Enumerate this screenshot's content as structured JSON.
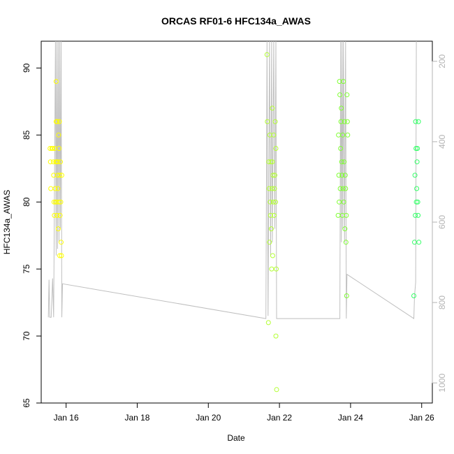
{
  "chart_data": {
    "type": "scatter",
    "title": "ORCAS RF01-6 HFC134a_AWAS",
    "xlabel": "Date",
    "ylabel": "HFC134a_AWAS",
    "ylim": [
      65,
      92
    ],
    "xlim": [
      15.3,
      26.3
    ],
    "y2lim": [
      1050,
      150
    ],
    "x_ticks": [
      {
        "value": 16,
        "label": "Jan 16"
      },
      {
        "value": 18,
        "label": "Jan 18"
      },
      {
        "value": 20,
        "label": "Jan 20"
      },
      {
        "value": 22,
        "label": "Jan 22"
      },
      {
        "value": 24,
        "label": "Jan 24"
      },
      {
        "value": 26,
        "label": "Jan 26"
      }
    ],
    "y_ticks": [
      65,
      70,
      75,
      80,
      85,
      90
    ],
    "y2_ticks": [
      200,
      400,
      600,
      800,
      1000
    ],
    "box": true,
    "grid": false,
    "colors": {
      "flight1": "#ffff00",
      "flight2": "#ccff33",
      "flight3": "#99ff33",
      "flight4": "#66ff33",
      "flight5": "#33ff66",
      "pressure_line": "#bfbfbf"
    },
    "series": [
      {
        "color": "#ffff00",
        "points": [
          [
            15.55,
            84
          ],
          [
            15.56,
            83
          ],
          [
            15.57,
            81
          ],
          [
            15.6,
            84
          ],
          [
            15.62,
            84
          ],
          [
            15.64,
            83
          ],
          [
            15.65,
            82
          ],
          [
            15.66,
            80
          ],
          [
            15.67,
            79
          ],
          [
            15.68,
            84
          ],
          [
            15.69,
            81
          ],
          [
            15.7,
            80
          ],
          [
            15.71,
            83
          ],
          [
            15.72,
            86
          ],
          [
            15.72,
            89
          ],
          [
            15.73,
            83
          ],
          [
            15.74,
            80
          ],
          [
            15.75,
            86
          ],
          [
            15.75,
            79
          ],
          [
            15.76,
            82
          ],
          [
            15.77,
            81
          ],
          [
            15.77,
            83
          ],
          [
            15.78,
            78
          ],
          [
            15.79,
            85
          ],
          [
            15.8,
            80
          ],
          [
            15.8,
            84
          ],
          [
            15.81,
            86
          ],
          [
            15.82,
            82
          ],
          [
            15.82,
            76
          ],
          [
            15.83,
            79
          ],
          [
            15.84,
            83
          ],
          [
            15.85,
            80
          ],
          [
            15.86,
            77
          ],
          [
            15.87,
            76
          ],
          [
            15.88,
            82
          ]
        ]
      },
      {
        "color": "#b3ff33",
        "points": [
          [
            21.65,
            91
          ],
          [
            21.66,
            86
          ],
          [
            21.69,
            71
          ],
          [
            21.7,
            83
          ],
          [
            21.71,
            81
          ],
          [
            21.72,
            77
          ],
          [
            21.73,
            85
          ],
          [
            21.74,
            80
          ],
          [
            21.75,
            79
          ],
          [
            21.76,
            83
          ],
          [
            21.77,
            78
          ],
          [
            21.78,
            75
          ],
          [
            21.79,
            81
          ],
          [
            21.8,
            87
          ],
          [
            21.8,
            83
          ],
          [
            21.81,
            76
          ],
          [
            21.82,
            82
          ],
          [
            21.83,
            80
          ],
          [
            21.84,
            85
          ],
          [
            21.85,
            79
          ],
          [
            21.86,
            81
          ],
          [
            21.87,
            82
          ],
          [
            21.88,
            86
          ],
          [
            21.89,
            80
          ],
          [
            21.9,
            84
          ],
          [
            21.9,
            70
          ],
          [
            21.91,
            75
          ],
          [
            21.92,
            66
          ]
        ]
      },
      {
        "color": "#80ff33",
        "points": [
          [
            23.65,
            79
          ],
          [
            23.66,
            85
          ],
          [
            23.67,
            82
          ],
          [
            23.68,
            80
          ],
          [
            23.69,
            89
          ],
          [
            23.7,
            88
          ],
          [
            23.71,
            81
          ],
          [
            23.72,
            84
          ],
          [
            23.73,
            86
          ],
          [
            23.74,
            87
          ],
          [
            23.75,
            83
          ],
          [
            23.76,
            82
          ],
          [
            23.77,
            79
          ],
          [
            23.78,
            85
          ],
          [
            23.79,
            81
          ],
          [
            23.8,
            89
          ],
          [
            23.81,
            80
          ],
          [
            23.82,
            83
          ],
          [
            23.83,
            86
          ],
          [
            23.84,
            78
          ],
          [
            23.85,
            82
          ],
          [
            23.86,
            81
          ],
          [
            23.87,
            77
          ],
          [
            23.88,
            79
          ],
          [
            23.89,
            73
          ],
          [
            23.9,
            88
          ],
          [
            23.91,
            86
          ],
          [
            23.92,
            85
          ]
        ]
      },
      {
        "color": "#33ff66",
        "points": [
          [
            25.78,
            73
          ],
          [
            25.8,
            77
          ],
          [
            25.81,
            82
          ],
          [
            25.82,
            79
          ],
          [
            25.83,
            86
          ],
          [
            25.84,
            84
          ],
          [
            25.85,
            80
          ],
          [
            25.86,
            81
          ],
          [
            25.87,
            83
          ],
          [
            25.88,
            84
          ],
          [
            25.89,
            80
          ],
          [
            25.9,
            79
          ],
          [
            25.91,
            86
          ],
          [
            25.92,
            77
          ]
        ]
      }
    ],
    "pressure_line": [
      [
        15.5,
        71.4
      ],
      [
        15.52,
        74.2
      ],
      [
        15.54,
        71.4
      ],
      [
        15.58,
        71.4
      ],
      [
        15.62,
        74.3
      ],
      [
        15.65,
        71.4
      ],
      [
        15.7,
        92
      ],
      [
        15.72,
        76
      ],
      [
        15.74,
        92
      ],
      [
        15.76,
        76.5
      ],
      [
        15.78,
        92
      ],
      [
        15.8,
        77
      ],
      [
        15.82,
        92
      ],
      [
        15.84,
        78
      ],
      [
        15.86,
        92
      ],
      [
        15.88,
        71.4
      ],
      [
        15.9,
        73.9
      ],
      [
        21.62,
        71.3
      ],
      [
        21.65,
        92
      ],
      [
        21.68,
        71.5
      ],
      [
        21.72,
        92
      ],
      [
        21.75,
        76
      ],
      [
        21.78,
        92
      ],
      [
        21.8,
        77
      ],
      [
        21.84,
        92
      ],
      [
        21.87,
        78
      ],
      [
        21.9,
        92
      ],
      [
        21.92,
        71.3
      ],
      [
        23.7,
        71.3
      ],
      [
        23.72,
        92
      ],
      [
        23.74,
        77
      ],
      [
        23.76,
        92
      ],
      [
        23.78,
        78
      ],
      [
        23.8,
        92
      ],
      [
        23.83,
        77
      ],
      [
        23.86,
        92
      ],
      [
        23.88,
        71.3
      ],
      [
        23.9,
        74.6
      ],
      [
        25.78,
        71.3
      ],
      [
        25.8,
        73
      ],
      [
        25.83,
        74
      ],
      [
        25.85,
        92
      ]
    ]
  }
}
